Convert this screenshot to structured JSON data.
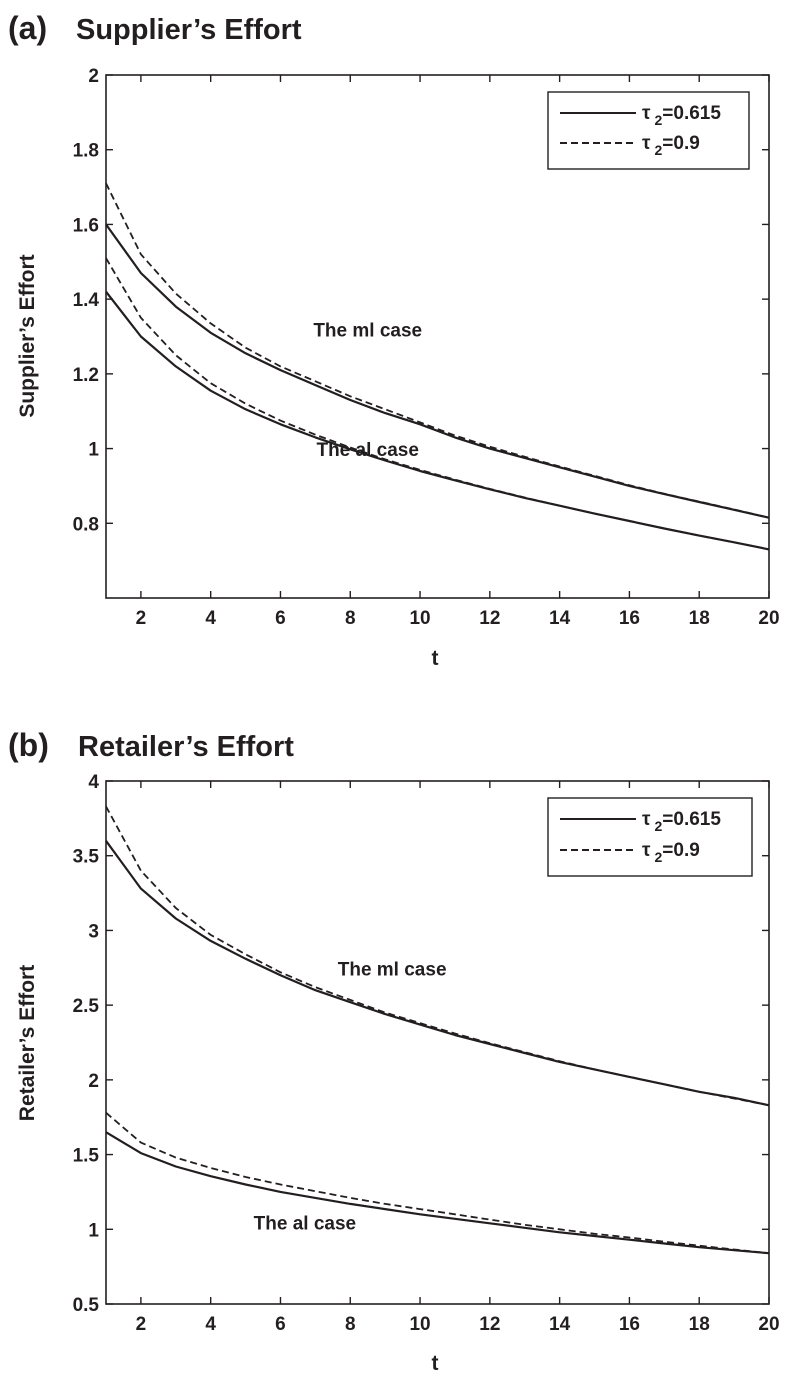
{
  "chart_data": [
    {
      "type": "line",
      "panel_label": "(a)",
      "title": "Supplier’s Effort",
      "xlabel": "t",
      "ylabel": "Supplier’s Effort",
      "xlim": [
        1,
        20
      ],
      "ylim": [
        0.6,
        2
      ],
      "xticks": [
        2,
        4,
        6,
        8,
        10,
        12,
        14,
        16,
        18,
        20
      ],
      "yticks": [
        0.8,
        1,
        1.2,
        1.4,
        1.6,
        1.8,
        2
      ],
      "ytick_labels": [
        "0.8",
        "1",
        "1.2",
        "1.4",
        "1.6",
        "1.8",
        "2"
      ],
      "legend": {
        "position": "top-right",
        "entries": [
          {
            "symbol": "τ",
            "sub": "2",
            "value": "=0.615",
            "style": "solid"
          },
          {
            "symbol": "τ",
            "sub": "2",
            "value": "=0.9",
            "style": "dashed"
          }
        ]
      },
      "annotations": [
        {
          "text": "The ml case",
          "x": 8.5,
          "y": 1.3
        },
        {
          "text": "The al case",
          "x": 8.5,
          "y": 0.98
        }
      ],
      "x": [
        1,
        2,
        3,
        4,
        5,
        6,
        7,
        8,
        9,
        10,
        11,
        12,
        13,
        14,
        15,
        16,
        17,
        18,
        19,
        20
      ],
      "series": [
        {
          "case": "ml",
          "style": "solid",
          "values": [
            1.6,
            1.47,
            1.38,
            1.31,
            1.255,
            1.21,
            1.17,
            1.13,
            1.095,
            1.065,
            1.03,
            1.0,
            0.975,
            0.95,
            0.925,
            0.9,
            0.878,
            0.857,
            0.836,
            0.815
          ]
        },
        {
          "case": "ml",
          "style": "dashed",
          "values": [
            1.71,
            1.52,
            1.415,
            1.335,
            1.27,
            1.22,
            1.18,
            1.14,
            1.105,
            1.07,
            1.035,
            1.005,
            0.978,
            0.952,
            0.927,
            0.902,
            0.879,
            0.858,
            0.837,
            0.815
          ]
        },
        {
          "case": "al",
          "style": "solid",
          "values": [
            1.42,
            1.3,
            1.22,
            1.155,
            1.105,
            1.065,
            1.03,
            0.998,
            0.968,
            0.94,
            0.915,
            0.891,
            0.868,
            0.847,
            0.826,
            0.806,
            0.786,
            0.767,
            0.749,
            0.73
          ]
        },
        {
          "case": "al",
          "style": "dashed",
          "values": [
            1.51,
            1.35,
            1.25,
            1.175,
            1.12,
            1.075,
            1.037,
            1.003,
            0.971,
            0.943,
            0.917,
            0.892,
            0.869,
            0.847,
            0.826,
            0.806,
            0.786,
            0.767,
            0.749,
            0.73
          ]
        }
      ]
    },
    {
      "type": "line",
      "panel_label": "(b)",
      "title": "Retailer’s Effort",
      "xlabel": "t",
      "ylabel": "Retailer’s Effort",
      "xlim": [
        1,
        20
      ],
      "ylim": [
        0.5,
        4
      ],
      "xticks": [
        2,
        4,
        6,
        8,
        10,
        12,
        14,
        16,
        18,
        20
      ],
      "yticks": [
        0.5,
        1,
        1.5,
        2,
        2.5,
        3,
        3.5,
        4
      ],
      "ytick_labels": [
        "0.5",
        "1",
        "1.5",
        "2",
        "2.5",
        "3",
        "3.5",
        "4"
      ],
      "legend": {
        "position": "top-right",
        "entries": [
          {
            "symbol": "τ",
            "sub": "2",
            "value": "=0.615",
            "style": "solid"
          },
          {
            "symbol": "τ",
            "sub": "2",
            "value": "=0.9",
            "style": "dashed"
          }
        ]
      },
      "annotations": [
        {
          "text": "The ml case",
          "x": 9.2,
          "y": 2.7
        },
        {
          "text": "The al case",
          "x": 6.7,
          "y": 1.0
        }
      ],
      "x": [
        1,
        2,
        3,
        4,
        5,
        6,
        7,
        8,
        9,
        10,
        11,
        12,
        13,
        14,
        15,
        16,
        17,
        18,
        19,
        20
      ],
      "series": [
        {
          "case": "ml",
          "style": "solid",
          "values": [
            3.6,
            3.28,
            3.08,
            2.93,
            2.81,
            2.7,
            2.6,
            2.52,
            2.44,
            2.37,
            2.3,
            2.24,
            2.18,
            2.12,
            2.07,
            2.02,
            1.97,
            1.92,
            1.88,
            1.83
          ]
        },
        {
          "case": "ml",
          "style": "dashed",
          "values": [
            3.83,
            3.4,
            3.15,
            2.97,
            2.84,
            2.72,
            2.62,
            2.535,
            2.45,
            2.38,
            2.31,
            2.245,
            2.185,
            2.125,
            2.07,
            2.02,
            1.97,
            1.92,
            1.875,
            1.83
          ]
        },
        {
          "case": "al",
          "style": "solid",
          "values": [
            1.65,
            1.51,
            1.42,
            1.355,
            1.3,
            1.25,
            1.21,
            1.17,
            1.135,
            1.1,
            1.07,
            1.04,
            1.01,
            0.98,
            0.955,
            0.93,
            0.905,
            0.88,
            0.86,
            0.84
          ]
        },
        {
          "case": "al",
          "style": "dashed",
          "values": [
            1.78,
            1.58,
            1.48,
            1.41,
            1.35,
            1.3,
            1.255,
            1.21,
            1.17,
            1.135,
            1.1,
            1.065,
            1.03,
            1.0,
            0.97,
            0.945,
            0.917,
            0.89,
            0.865,
            0.84
          ]
        }
      ]
    }
  ]
}
